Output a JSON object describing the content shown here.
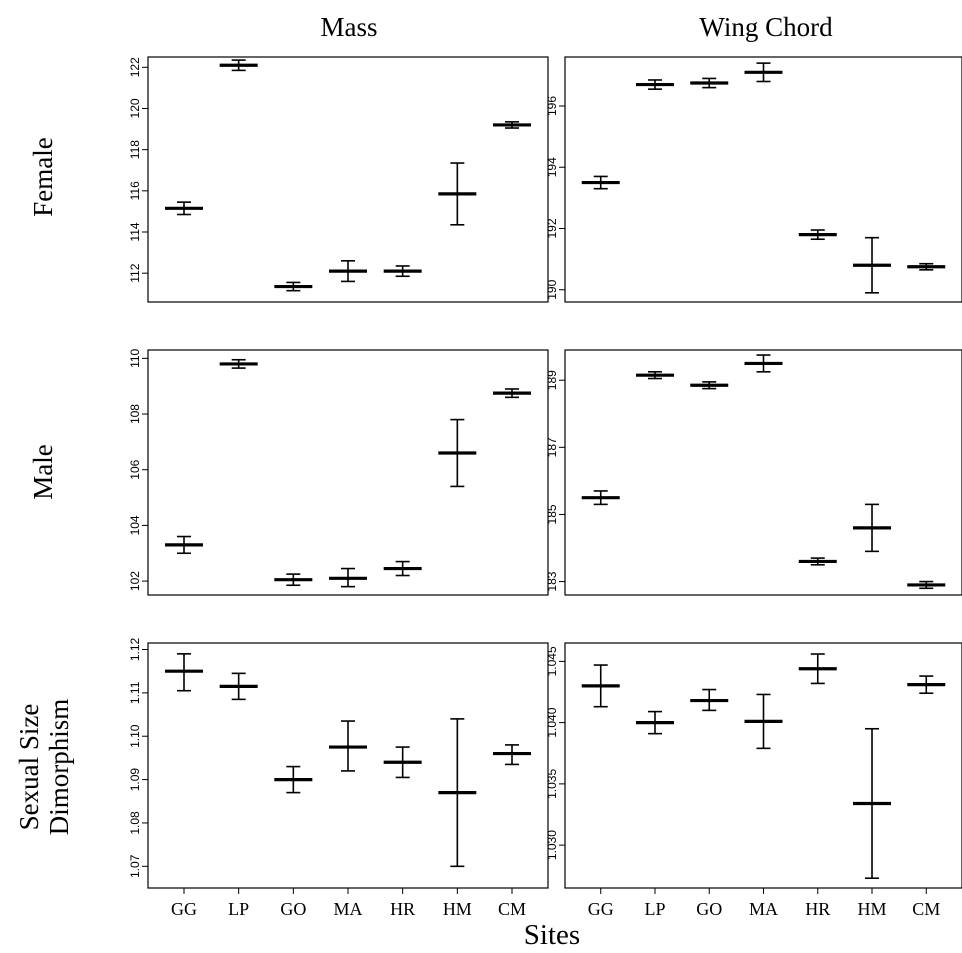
{
  "col_titles": [
    "Mass",
    "Wing Chord"
  ],
  "row_titles": [
    "Female",
    "Male",
    "Sexual Size",
    "Dimorphism"
  ],
  "x_title": "Sites",
  "chart_data": [
    {
      "type": "errorbar",
      "row": "Female",
      "column": "Mass",
      "categories": [
        "GG",
        "LP",
        "GO",
        "MA",
        "HR",
        "HM",
        "CM"
      ],
      "mean": [
        115.15,
        122.1,
        111.35,
        112.1,
        112.1,
        115.85,
        119.2
      ],
      "lower": [
        114.85,
        121.85,
        111.15,
        111.6,
        111.85,
        114.35,
        119.05
      ],
      "upper": [
        115.45,
        122.35,
        111.55,
        112.6,
        112.35,
        117.35,
        119.35
      ],
      "yticks": [
        112,
        114,
        116,
        118,
        120,
        122
      ],
      "ylim": [
        110.6,
        122.5
      ],
      "show_x_ticks": false
    },
    {
      "type": "errorbar",
      "row": "Female",
      "column": "Wing Chord",
      "categories": [
        "GG",
        "LP",
        "GO",
        "MA",
        "HR",
        "HM",
        "CM"
      ],
      "mean": [
        193.5,
        196.7,
        196.75,
        197.1,
        191.8,
        190.8,
        190.75
      ],
      "lower": [
        193.3,
        196.55,
        196.6,
        196.8,
        191.65,
        189.9,
        190.65
      ],
      "upper": [
        193.7,
        196.85,
        196.9,
        197.4,
        191.95,
        191.7,
        190.85
      ],
      "yticks": [
        190,
        192,
        194,
        196
      ],
      "ylim": [
        189.6,
        197.6
      ],
      "show_x_ticks": false
    },
    {
      "type": "errorbar",
      "row": "Male",
      "column": "Mass",
      "categories": [
        "GG",
        "LP",
        "GO",
        "MA",
        "HR",
        "HM",
        "CM"
      ],
      "mean": [
        103.3,
        109.8,
        102.05,
        102.1,
        102.45,
        106.6,
        108.75
      ],
      "lower": [
        103.0,
        109.65,
        101.85,
        101.8,
        102.2,
        105.4,
        108.6
      ],
      "upper": [
        103.6,
        109.95,
        102.25,
        102.45,
        102.7,
        107.8,
        108.9
      ],
      "yticks": [
        102,
        104,
        106,
        108,
        110
      ],
      "ylim": [
        101.5,
        110.3
      ],
      "show_x_ticks": false
    },
    {
      "type": "errorbar",
      "row": "Male",
      "column": "Wing Chord",
      "categories": [
        "GG",
        "LP",
        "GO",
        "MA",
        "HR",
        "HM",
        "CM"
      ],
      "mean": [
        185.5,
        189.15,
        188.85,
        189.5,
        183.6,
        184.6,
        182.9
      ],
      "lower": [
        185.3,
        189.05,
        188.75,
        189.25,
        183.5,
        183.9,
        182.8
      ],
      "upper": [
        185.7,
        189.25,
        188.95,
        189.75,
        183.7,
        185.3,
        183.0
      ],
      "yticks": [
        183,
        185,
        187,
        189
      ],
      "ylim": [
        182.6,
        189.9
      ],
      "show_x_ticks": false
    },
    {
      "type": "errorbar",
      "row": "Sexual Size Dimorphism",
      "column": "Mass",
      "categories": [
        "GG",
        "LP",
        "GO",
        "MA",
        "HR",
        "HM",
        "CM"
      ],
      "mean": [
        1.115,
        1.1115,
        1.09,
        1.0975,
        1.094,
        1.087,
        1.096
      ],
      "lower": [
        1.1105,
        1.1085,
        1.087,
        1.092,
        1.0905,
        1.07,
        1.0935
      ],
      "upper": [
        1.119,
        1.1145,
        1.093,
        1.1035,
        1.0975,
        1.104,
        1.098
      ],
      "yticks": [
        1.07,
        1.08,
        1.09,
        1.1,
        1.11,
        1.12
      ],
      "ytick_labels": [
        "1.07",
        "1.08",
        "1.09",
        "1.10",
        "1.11",
        "1.12"
      ],
      "ylim": [
        1.065,
        1.1215
      ],
      "show_x_ticks": true
    },
    {
      "type": "errorbar",
      "row": "Sexual Size Dimorphism",
      "column": "Wing Chord",
      "categories": [
        "GG",
        "LP",
        "GO",
        "MA",
        "HR",
        "HM",
        "CM"
      ],
      "mean": [
        1.043,
        1.04,
        1.0418,
        1.0401,
        1.0444,
        1.0334,
        1.0431
      ],
      "lower": [
        1.0413,
        1.0391,
        1.041,
        1.0379,
        1.0432,
        1.0273,
        1.0424
      ],
      "upper": [
        1.0447,
        1.0409,
        1.0427,
        1.0423,
        1.0456,
        1.0395,
        1.0438
      ],
      "yticks": [
        1.03,
        1.035,
        1.04,
        1.045
      ],
      "ytick_labels": [
        "1.030",
        "1.035",
        "1.040",
        "1.045"
      ],
      "ylim": [
        1.0265,
        1.0465
      ],
      "show_x_ticks": true
    }
  ]
}
